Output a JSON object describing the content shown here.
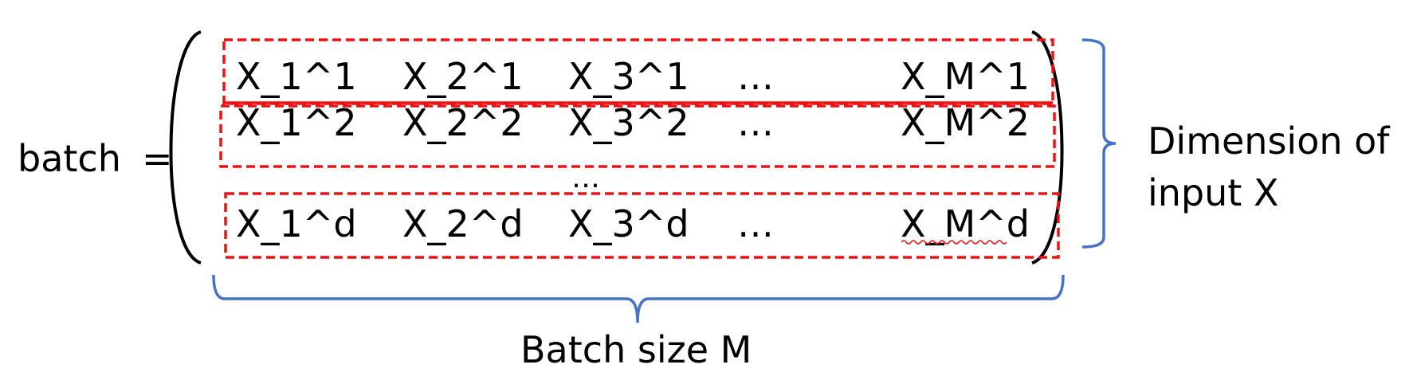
{
  "lhs": {
    "label": "batch",
    "equals": "="
  },
  "matrix": {
    "rows": [
      [
        "X_1^1",
        "X_2^1",
        "X_3^1",
        "…",
        "X_M^1"
      ],
      [
        "X_1^2",
        "X_2^2",
        "X_3^2",
        "…",
        "X_M^2"
      ],
      [
        "X_1^d",
        "X_2^d",
        "X_3^d",
        "…",
        "X_M^d"
      ]
    ],
    "vertical_ellipsis": "…"
  },
  "annotations": {
    "dimension_line1": "Dimension of",
    "dimension_line2": "input X",
    "batch_size": "Batch size M"
  },
  "colors": {
    "text": "#000000",
    "highlight": "#ee1111",
    "brace": "#4472c4",
    "spellcheck": "#ee1111"
  }
}
